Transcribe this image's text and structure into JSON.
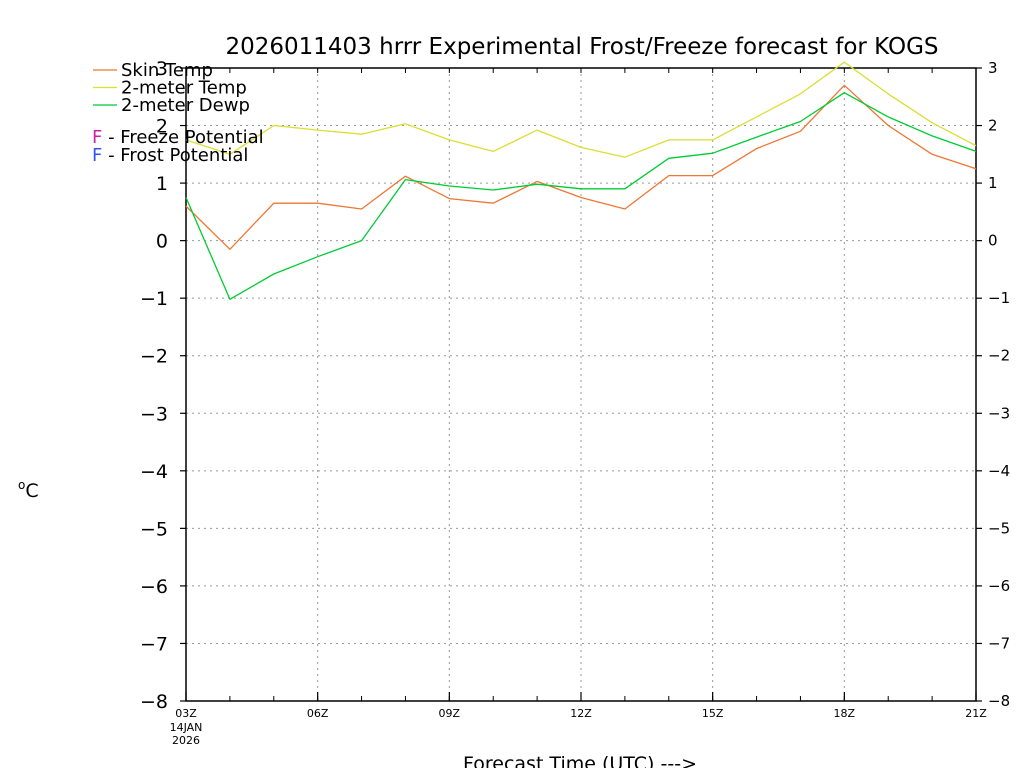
{
  "chart_data": {
    "type": "line",
    "title": "2026011403 hrrr Experimental Frost/Freeze forecast for KOGS",
    "xlabel": "Forecast Time (UTC) --->",
    "ylabel": "°C",
    "ylabel_base": "C",
    "ylabel_sup": "o",
    "ylim": [
      -8,
      3
    ],
    "xlim": [
      3,
      21
    ],
    "yticks": [
      3,
      2,
      1,
      0,
      -1,
      -2,
      -3,
      -4,
      -5,
      -6,
      -7,
      -8
    ],
    "xticks": [
      {
        "x": 3,
        "label": "03Z"
      },
      {
        "x": 6,
        "label": "06Z"
      },
      {
        "x": 9,
        "label": "09Z"
      },
      {
        "x": 12,
        "label": "12Z"
      },
      {
        "x": 15,
        "label": "15Z"
      },
      {
        "x": 18,
        "label": "18Z"
      },
      {
        "x": 21,
        "label": "21Z"
      }
    ],
    "date_label": [
      "14JAN",
      "2026"
    ],
    "x": [
      3,
      4,
      5,
      6,
      7,
      8,
      9,
      10,
      11,
      12,
      13,
      14,
      15,
      16,
      17,
      18,
      19,
      20,
      21
    ],
    "series": [
      {
        "name": "Skin Temp",
        "color": "#ee7733",
        "values": [
          0.6,
          -0.15,
          0.65,
          0.65,
          0.55,
          1.12,
          0.73,
          0.65,
          1.03,
          0.75,
          0.55,
          1.13,
          1.13,
          1.6,
          1.9,
          2.7,
          2.0,
          1.5,
          1.25
        ]
      },
      {
        "name": "2-meter Temp",
        "color": "#dddd33",
        "values": [
          1.75,
          1.5,
          2.0,
          1.92,
          1.85,
          2.03,
          1.75,
          1.55,
          1.92,
          1.62,
          1.45,
          1.75,
          1.75,
          2.15,
          2.55,
          3.1,
          2.55,
          2.05,
          1.65
        ]
      },
      {
        "name": "2-meter Dewp",
        "color": "#00cc33",
        "values": [
          0.75,
          -1.02,
          -0.58,
          -0.28,
          0.0,
          1.06,
          0.95,
          0.88,
          0.98,
          0.9,
          0.9,
          1.43,
          1.52,
          1.8,
          2.07,
          2.57,
          2.15,
          1.82,
          1.55
        ]
      }
    ],
    "legend": [
      {
        "marker": "F",
        "text": " - Freeze Potential",
        "color": "#cc22aa"
      },
      {
        "marker": "F",
        "text": " - Frost Potential",
        "color": "#3355ee"
      }
    ],
    "grid": true
  }
}
